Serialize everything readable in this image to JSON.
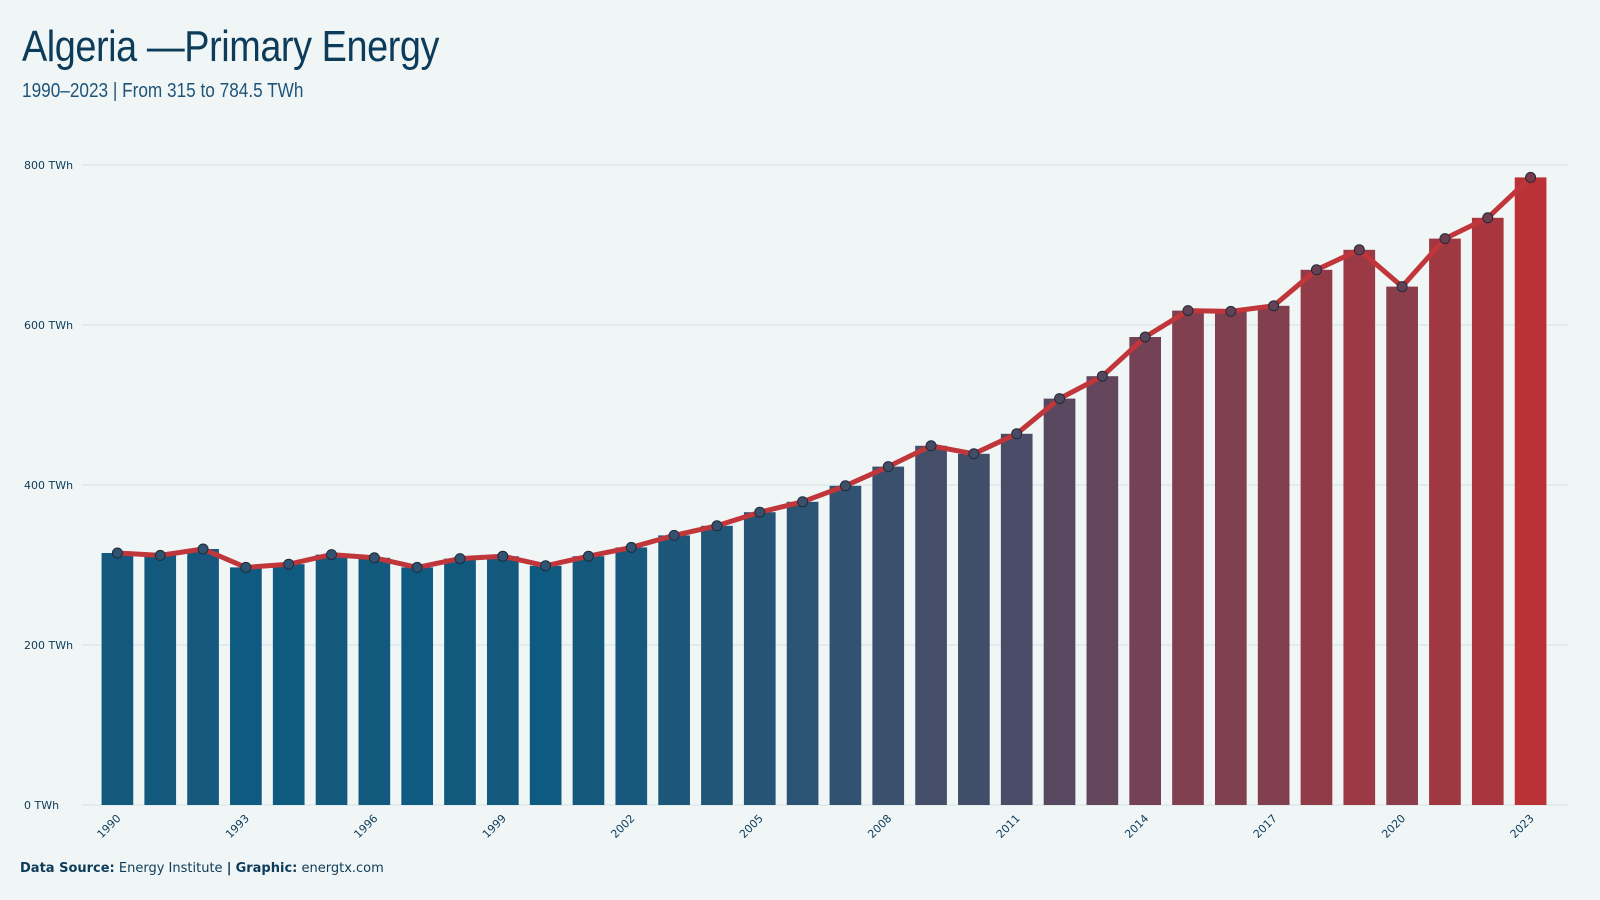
{
  "header": {
    "title": "Algeria —Primary Energy",
    "subtitle": "1990–2023 | From 315 to 784.5 TWh"
  },
  "footer": {
    "source_label": "Data Source:",
    "source_value": "Energy Institute",
    "separator": "|",
    "graphic_label": "Graphic:",
    "graphic_value": "energtx.com"
  },
  "colors": {
    "background": "#f0f6f6",
    "bar_start": "#0e5a80",
    "bar_end": "#bb3236",
    "line": "#c0363a",
    "marker_fill": "#2e5472",
    "text": "#0d3b5a",
    "grid": "#d5e2e4"
  },
  "chart_data": {
    "type": "bar",
    "title": "Algeria —Primary Energy",
    "subtitle": "1990–2023 | From 315 to 784.5 TWh",
    "xlabel": "",
    "ylabel": "",
    "ylim": [
      0,
      800
    ],
    "yticks": [
      0,
      200,
      400,
      600,
      800
    ],
    "ytick_labels": [
      "0 TWh",
      "200 TWh",
      "400 TWh",
      "600 TWh",
      "800 TWh"
    ],
    "xtick_labels": [
      "1990",
      "1993",
      "1996",
      "1999",
      "2002",
      "2005",
      "2008",
      "2011",
      "2014",
      "2017",
      "2020",
      "2023"
    ],
    "grid": true,
    "categories": [
      "1990",
      "1991",
      "1992",
      "1993",
      "1994",
      "1995",
      "1996",
      "1997",
      "1998",
      "1999",
      "2000",
      "2001",
      "2002",
      "2003",
      "2004",
      "2005",
      "2006",
      "2007",
      "2008",
      "2009",
      "2010",
      "2011",
      "2012",
      "2013",
      "2014",
      "2015",
      "2016",
      "2017",
      "2018",
      "2019",
      "2020",
      "2021",
      "2022",
      "2023"
    ],
    "series": [
      {
        "values": [
          315,
          312,
          320,
          297,
          301,
          313,
          309,
          297,
          308,
          311,
          299,
          311,
          322,
          337,
          349,
          366,
          379,
          399,
          423,
          449,
          439,
          464,
          508,
          536,
          585,
          618,
          617,
          624,
          669,
          694,
          648,
          708,
          734,
          784.5
        ]
      }
    ]
  }
}
